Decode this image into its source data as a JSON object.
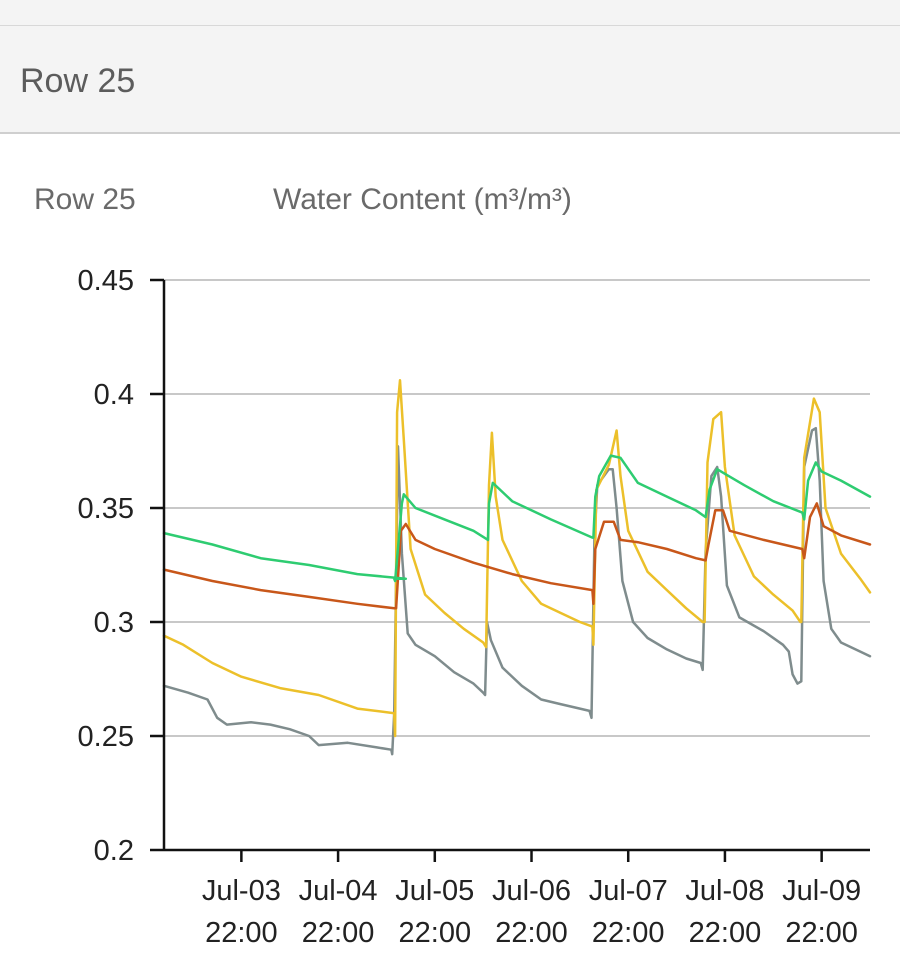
{
  "header": {
    "title": "Row 25"
  },
  "chart_header": {
    "row_label": "Row 25",
    "metric_label": "Water Content (m³/m³)"
  },
  "chart_data": {
    "type": "line",
    "title": "Water Content (m³/m³)",
    "ylabel": "Water Content (m³/m³)",
    "xlabel": "",
    "ylim": [
      0.2,
      0.45
    ],
    "xlim": [
      0,
      7.3
    ],
    "grid": true,
    "y_ticks": [
      "0.2",
      "0.25",
      "0.3",
      "0.35",
      "0.4",
      "0.45"
    ],
    "x_ticks": [
      {
        "at": 0.8,
        "line1": "Jul-03",
        "line2": "22:00"
      },
      {
        "at": 1.8,
        "line1": "Jul-04",
        "line2": "22:00"
      },
      {
        "at": 2.8,
        "line1": "Jul-05",
        "line2": "22:00"
      },
      {
        "at": 3.8,
        "line1": "Jul-06",
        "line2": "22:00"
      },
      {
        "at": 4.8,
        "line1": "Jul-07",
        "line2": "22:00"
      },
      {
        "at": 5.8,
        "line1": "Jul-08",
        "line2": "22:00"
      },
      {
        "at": 6.8,
        "line1": "Jul-09",
        "line2": "22:00"
      }
    ],
    "series": [
      {
        "name": "green",
        "color": "#2ecc71",
        "points": [
          [
            0,
            0.339
          ],
          [
            0.5,
            0.334
          ],
          [
            1,
            0.328
          ],
          [
            1.5,
            0.325
          ],
          [
            2,
            0.321
          ],
          [
            2.5,
            0.319
          ],
          [
            2.38,
            0.319
          ],
          [
            2.39,
            0.318
          ],
          [
            2.46,
            0.352
          ],
          [
            2.48,
            0.356
          ],
          [
            2.6,
            0.35
          ],
          [
            2.9,
            0.345
          ],
          [
            3.2,
            0.34
          ],
          [
            3.35,
            0.336
          ],
          [
            3.36,
            0.352
          ],
          [
            3.4,
            0.361
          ],
          [
            3.6,
            0.353
          ],
          [
            4.0,
            0.345
          ],
          [
            4.43,
            0.337
          ],
          [
            4.44,
            0.337
          ],
          [
            4.46,
            0.355
          ],
          [
            4.5,
            0.364
          ],
          [
            4.62,
            0.373
          ],
          [
            4.72,
            0.372
          ],
          [
            4.9,
            0.361
          ],
          [
            5.2,
            0.355
          ],
          [
            5.5,
            0.349
          ],
          [
            5.6,
            0.346
          ],
          [
            5.64,
            0.358
          ],
          [
            5.72,
            0.367
          ],
          [
            5.8,
            0.365
          ],
          [
            6.0,
            0.36
          ],
          [
            6.3,
            0.353
          ],
          [
            6.6,
            0.348
          ],
          [
            6.62,
            0.345
          ],
          [
            6.66,
            0.362
          ],
          [
            6.74,
            0.37
          ],
          [
            6.8,
            0.366
          ],
          [
            7.0,
            0.362
          ],
          [
            7.3,
            0.355
          ]
        ]
      },
      {
        "name": "orange",
        "color": "#c8571a",
        "points": [
          [
            0,
            0.323
          ],
          [
            0.5,
            0.318
          ],
          [
            1,
            0.314
          ],
          [
            1.5,
            0.311
          ],
          [
            2,
            0.308
          ],
          [
            2.38,
            0.306
          ],
          [
            2.4,
            0.306
          ],
          [
            2.45,
            0.34
          ],
          [
            2.5,
            0.343
          ],
          [
            2.6,
            0.336
          ],
          [
            2.8,
            0.332
          ],
          [
            3.2,
            0.326
          ],
          [
            3.6,
            0.321
          ],
          [
            4.0,
            0.317
          ],
          [
            4.43,
            0.314
          ],
          [
            4.44,
            0.308
          ],
          [
            4.46,
            0.332
          ],
          [
            4.55,
            0.344
          ],
          [
            4.65,
            0.344
          ],
          [
            4.72,
            0.336
          ],
          [
            4.9,
            0.335
          ],
          [
            5.2,
            0.332
          ],
          [
            5.5,
            0.328
          ],
          [
            5.6,
            0.327
          ],
          [
            5.63,
            0.334
          ],
          [
            5.7,
            0.349
          ],
          [
            5.78,
            0.349
          ],
          [
            5.85,
            0.34
          ],
          [
            6.2,
            0.336
          ],
          [
            6.6,
            0.332
          ],
          [
            6.62,
            0.328
          ],
          [
            6.68,
            0.346
          ],
          [
            6.75,
            0.352
          ],
          [
            6.82,
            0.342
          ],
          [
            7.0,
            0.338
          ],
          [
            7.3,
            0.334
          ]
        ]
      },
      {
        "name": "yellow",
        "color": "#ecc02a",
        "points": [
          [
            0,
            0.294
          ],
          [
            0.2,
            0.29
          ],
          [
            0.5,
            0.282
          ],
          [
            0.8,
            0.276
          ],
          [
            1.2,
            0.271
          ],
          [
            1.6,
            0.268
          ],
          [
            2.0,
            0.262
          ],
          [
            2.38,
            0.26
          ],
          [
            2.39,
            0.25
          ],
          [
            2.41,
            0.392
          ],
          [
            2.44,
            0.406
          ],
          [
            2.48,
            0.38
          ],
          [
            2.55,
            0.332
          ],
          [
            2.7,
            0.312
          ],
          [
            2.9,
            0.304
          ],
          [
            3.1,
            0.297
          ],
          [
            3.3,
            0.291
          ],
          [
            3.33,
            0.289
          ],
          [
            3.36,
            0.36
          ],
          [
            3.39,
            0.383
          ],
          [
            3.43,
            0.355
          ],
          [
            3.5,
            0.336
          ],
          [
            3.7,
            0.318
          ],
          [
            3.9,
            0.308
          ],
          [
            4.1,
            0.304
          ],
          [
            4.3,
            0.3
          ],
          [
            4.43,
            0.298
          ],
          [
            4.44,
            0.29
          ],
          [
            4.47,
            0.358
          ],
          [
            4.6,
            0.369
          ],
          [
            4.68,
            0.384
          ],
          [
            4.72,
            0.364
          ],
          [
            4.8,
            0.34
          ],
          [
            5.0,
            0.322
          ],
          [
            5.2,
            0.314
          ],
          [
            5.4,
            0.306
          ],
          [
            5.57,
            0.3
          ],
          [
            5.59,
            0.3
          ],
          [
            5.62,
            0.37
          ],
          [
            5.68,
            0.389
          ],
          [
            5.76,
            0.392
          ],
          [
            5.8,
            0.368
          ],
          [
            5.9,
            0.338
          ],
          [
            6.1,
            0.32
          ],
          [
            6.3,
            0.312
          ],
          [
            6.5,
            0.305
          ],
          [
            6.58,
            0.3
          ],
          [
            6.59,
            0.3
          ],
          [
            6.62,
            0.372
          ],
          [
            6.72,
            0.398
          ],
          [
            6.78,
            0.392
          ],
          [
            6.84,
            0.35
          ],
          [
            7.0,
            0.33
          ],
          [
            7.2,
            0.319
          ],
          [
            7.3,
            0.313
          ]
        ]
      },
      {
        "name": "gray",
        "color": "#7f8c8d",
        "points": [
          [
            0,
            0.272
          ],
          [
            0.25,
            0.269
          ],
          [
            0.45,
            0.266
          ],
          [
            0.55,
            0.258
          ],
          [
            0.65,
            0.255
          ],
          [
            0.9,
            0.256
          ],
          [
            1.1,
            0.255
          ],
          [
            1.3,
            0.253
          ],
          [
            1.5,
            0.25
          ],
          [
            1.6,
            0.246
          ],
          [
            1.9,
            0.247
          ],
          [
            2.2,
            0.245
          ],
          [
            2.35,
            0.244
          ],
          [
            2.36,
            0.242
          ],
          [
            2.38,
            0.26
          ],
          [
            2.42,
            0.377
          ],
          [
            2.46,
            0.33
          ],
          [
            2.52,
            0.295
          ],
          [
            2.6,
            0.29
          ],
          [
            2.8,
            0.285
          ],
          [
            3.0,
            0.278
          ],
          [
            3.2,
            0.273
          ],
          [
            3.3,
            0.269
          ],
          [
            3.32,
            0.268
          ],
          [
            3.34,
            0.3
          ],
          [
            3.38,
            0.292
          ],
          [
            3.5,
            0.28
          ],
          [
            3.7,
            0.272
          ],
          [
            3.9,
            0.266
          ],
          [
            4.1,
            0.264
          ],
          [
            4.3,
            0.262
          ],
          [
            4.4,
            0.261
          ],
          [
            4.42,
            0.258
          ],
          [
            4.45,
            0.336
          ],
          [
            4.48,
            0.36
          ],
          [
            4.6,
            0.367
          ],
          [
            4.64,
            0.367
          ],
          [
            4.68,
            0.35
          ],
          [
            4.74,
            0.318
          ],
          [
            4.85,
            0.3
          ],
          [
            5.0,
            0.293
          ],
          [
            5.2,
            0.288
          ],
          [
            5.4,
            0.284
          ],
          [
            5.55,
            0.282
          ],
          [
            5.57,
            0.279
          ],
          [
            5.6,
            0.331
          ],
          [
            5.66,
            0.364
          ],
          [
            5.72,
            0.368
          ],
          [
            5.76,
            0.355
          ],
          [
            5.82,
            0.316
          ],
          [
            5.95,
            0.302
          ],
          [
            6.2,
            0.296
          ],
          [
            6.4,
            0.29
          ],
          [
            6.46,
            0.287
          ],
          [
            6.5,
            0.277
          ],
          [
            6.55,
            0.273
          ],
          [
            6.59,
            0.274
          ],
          [
            6.62,
            0.368
          ],
          [
            6.7,
            0.384
          ],
          [
            6.74,
            0.385
          ],
          [
            6.78,
            0.362
          ],
          [
            6.82,
            0.318
          ],
          [
            6.9,
            0.297
          ],
          [
            7.0,
            0.291
          ],
          [
            7.2,
            0.287
          ],
          [
            7.3,
            0.285
          ]
        ]
      }
    ]
  }
}
